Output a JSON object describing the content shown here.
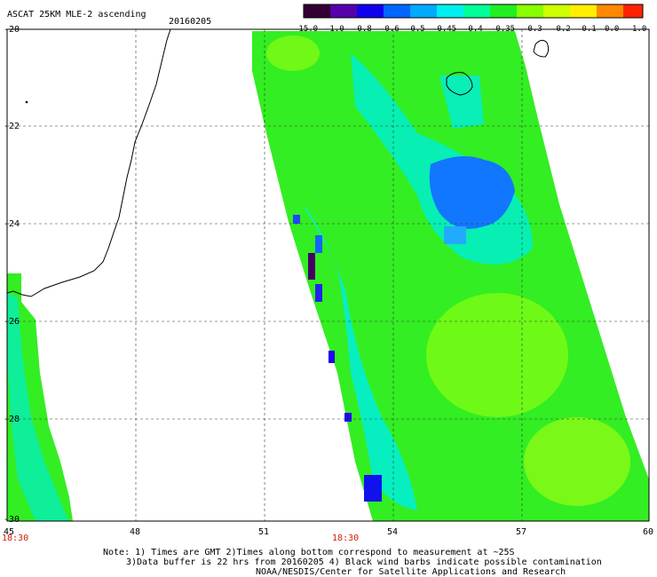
{
  "header": {
    "title": "ASCAT 25KM MLE-2 ascending",
    "date": "20160205"
  },
  "colorbar": {
    "labels": [
      "-15.0",
      "-1.0",
      "-0.8",
      "-0.6",
      "-0.5",
      "-0.45",
      "-0.4",
      "-0.35",
      "-0.3",
      "-0.2",
      "-0.1",
      "0.0",
      "1.0"
    ]
  },
  "axes": {
    "lat_labels": [
      "-20",
      "-22",
      "-24",
      "-26",
      "-28",
      "-30"
    ],
    "lon_labels": [
      "45",
      "48",
      "51",
      "54",
      "57",
      "60"
    ],
    "time_labels": [
      "18:30",
      "18:30"
    ]
  },
  "notes": {
    "line1": "Note: 1) Times are GMT 2)Times along bottom correspond to measurement at ~25S",
    "line2": "3)Data buffer is 22 hrs from 20160205 4) Black wind barbs indicate possible contamination",
    "line3": "NOAA/NESDIS/Center for Satellite Applications and Research"
  },
  "colors": {
    "swath_main": "#33ee22",
    "cyan": "#00eeee",
    "blue": "#1177ff",
    "dark_blue": "#2200dd",
    "yellow_green": "#99ff00",
    "label_red": "#cc2200"
  }
}
